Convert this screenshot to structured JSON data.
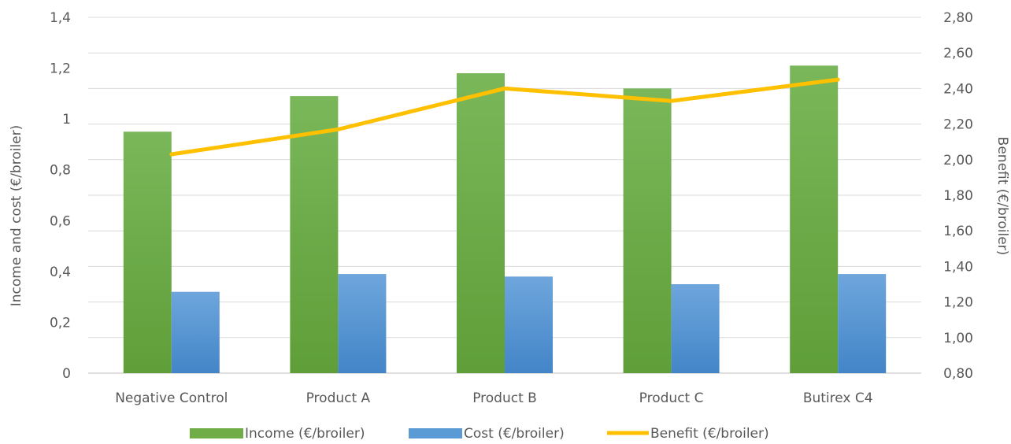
{
  "chart_data": {
    "type": "bar",
    "categories": [
      "Negative Control",
      "Product A",
      "Product B",
      "Product C",
      "Butirex C4"
    ],
    "series": [
      {
        "name": "Income (€/broiler)",
        "kind": "bar",
        "axis": "left",
        "color": "#70ad47",
        "values": [
          0.95,
          1.09,
          1.18,
          1.12,
          1.21
        ]
      },
      {
        "name": "Cost (€/broiler)",
        "kind": "bar",
        "axis": "left",
        "color": "#5b9bd5",
        "values": [
          0.32,
          0.39,
          0.38,
          0.35,
          0.39
        ]
      },
      {
        "name": "Benefit (€/broiler)",
        "kind": "line",
        "axis": "right",
        "color": "#ffc000",
        "values": [
          2.03,
          2.17,
          2.4,
          2.33,
          2.45
        ]
      }
    ],
    "y_left": {
      "label": "Income and cost (€/broiler)",
      "ylim": [
        0,
        1.4
      ],
      "ticks": [
        0,
        0.2,
        0.4,
        0.6,
        0.8,
        1,
        1.2,
        1.4
      ],
      "tick_labels": [
        "0",
        "0,2",
        "0,4",
        "0,6",
        "0,8",
        "1",
        "1,2",
        "1,4"
      ]
    },
    "y_right": {
      "label": "Benefit (€/broiler)",
      "ylim": [
        0.8,
        2.8
      ],
      "ticks": [
        0.8,
        1.0,
        1.2,
        1.4,
        1.6,
        1.8,
        2.0,
        2.2,
        2.4,
        2.6,
        2.8
      ],
      "tick_labels": [
        "0,80",
        "1,00",
        "1,20",
        "1,40",
        "1,60",
        "1,80",
        "2,00",
        "2,20",
        "2,40",
        "2,60",
        "2,80"
      ]
    },
    "grid": true,
    "legend": "bottom"
  }
}
